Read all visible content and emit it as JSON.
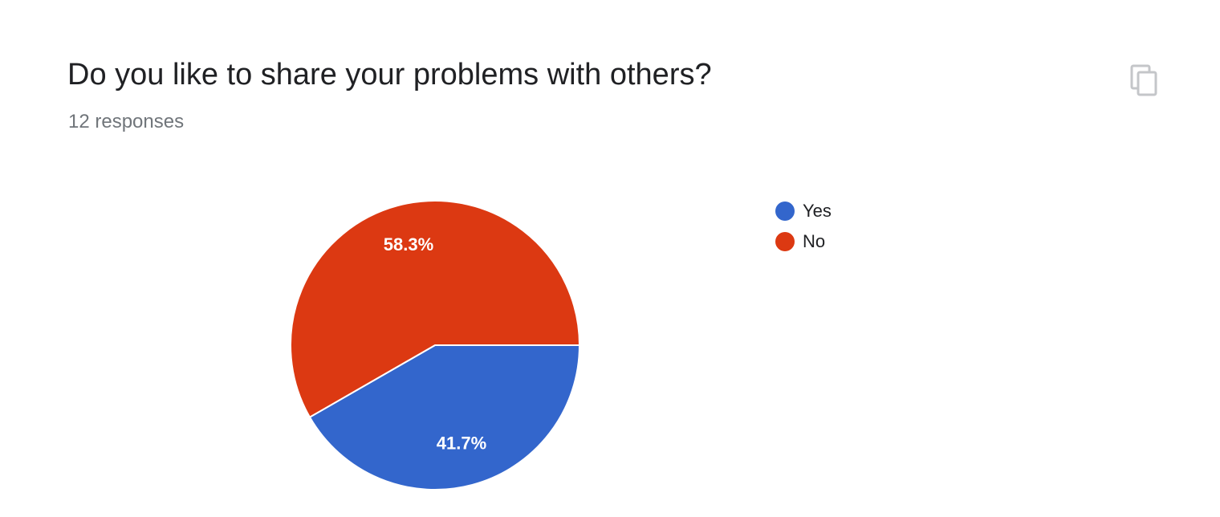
{
  "question": {
    "title": "Do you like to share your problems with others?",
    "responses_text": "12 responses"
  },
  "toolbar": {
    "copy_icon": "copy-icon"
  },
  "chart_data": {
    "type": "pie",
    "total_responses": 12,
    "slices": [
      {
        "label": "Yes",
        "value": 41.7,
        "display": "41.7%",
        "color": "#3366cc"
      },
      {
        "label": "No",
        "value": 58.3,
        "display": "58.3%",
        "color": "#dc3912"
      }
    ],
    "legend_position": "right"
  }
}
